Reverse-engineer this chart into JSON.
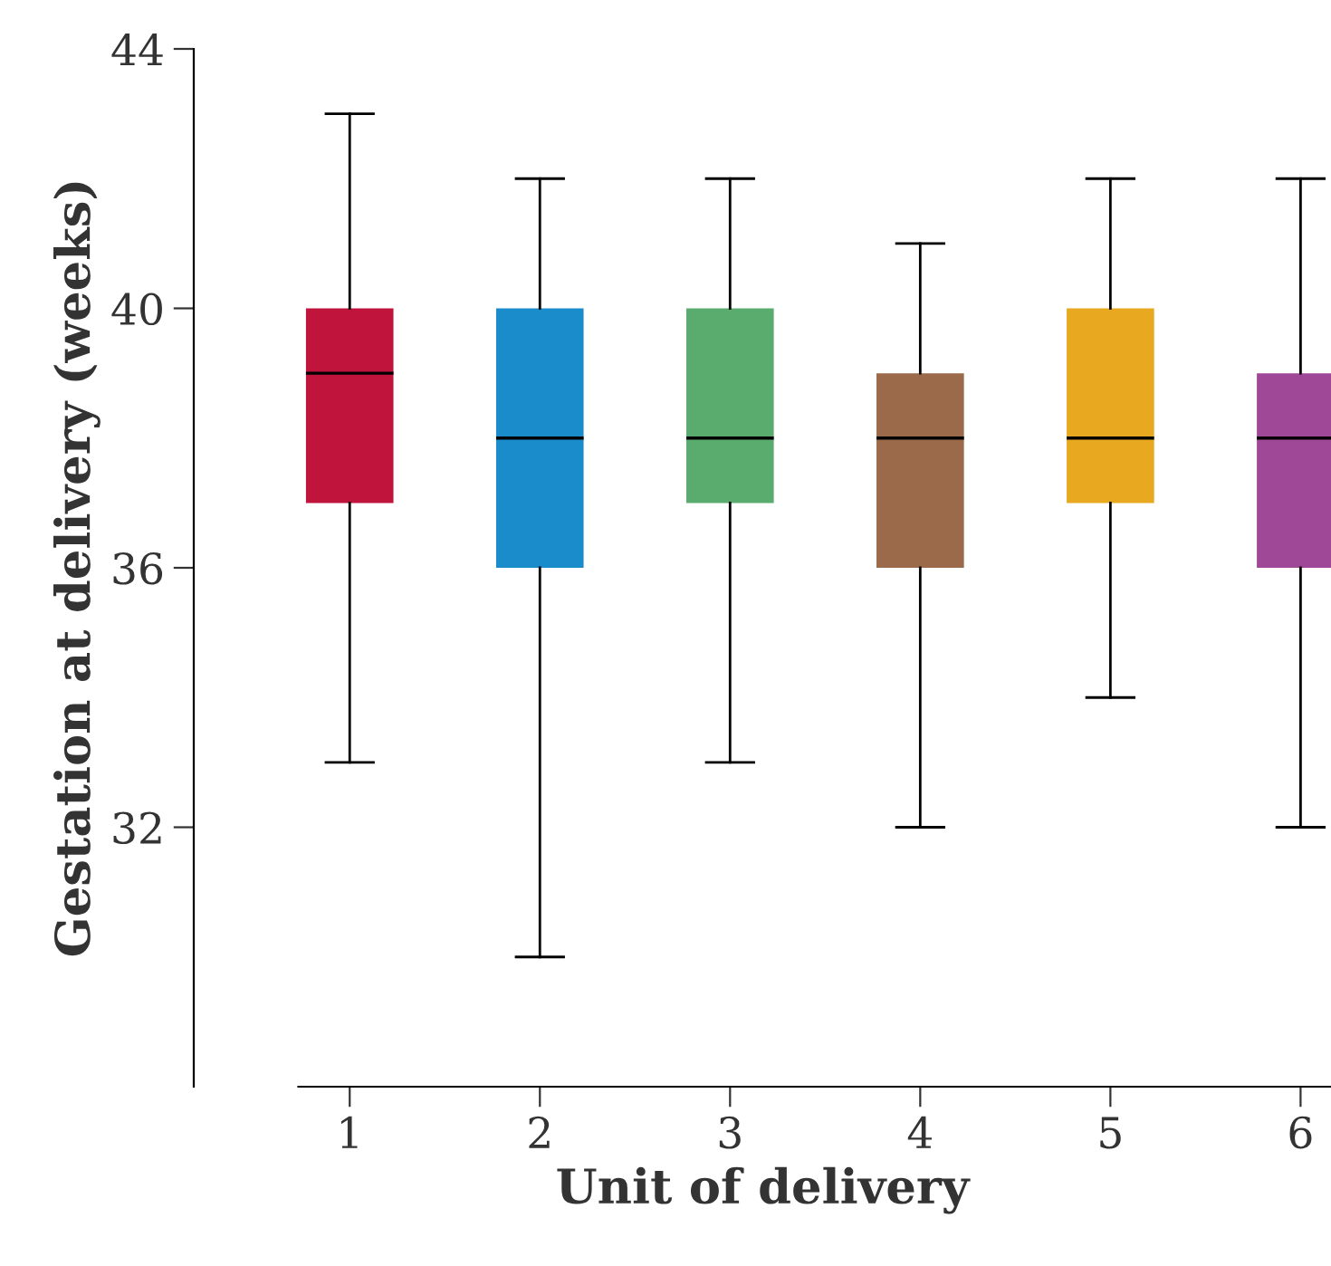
{
  "chart_data": {
    "type": "box",
    "xlabel": "Unit of delivery",
    "ylabel": "Gestation at delivery (weeks)",
    "categories": [
      "1",
      "2",
      "3",
      "4",
      "5",
      "6"
    ],
    "colors": [
      "#c0143c",
      "#1a8ccc",
      "#5aab6e",
      "#9a6a4a",
      "#e8a820",
      "#a04898"
    ],
    "boxes": [
      {
        "low": 33,
        "q1": 37,
        "median": 39,
        "q3": 40,
        "high": 43
      },
      {
        "low": 30,
        "q1": 36,
        "median": 38,
        "q3": 40,
        "high": 42
      },
      {
        "low": 33,
        "q1": 37,
        "median": 38,
        "q3": 40,
        "high": 42
      },
      {
        "low": 32,
        "q1": 36,
        "median": 38,
        "q3": 39,
        "high": 41
      },
      {
        "low": 34,
        "q1": 37,
        "median": 38,
        "q3": 40,
        "high": 42
      },
      {
        "low": 32,
        "q1": 36,
        "median": 38,
        "q3": 39,
        "high": 42
      }
    ],
    "ylim": [
      28,
      44
    ],
    "yticks": [
      32,
      36,
      40,
      44
    ],
    "grid": false
  }
}
